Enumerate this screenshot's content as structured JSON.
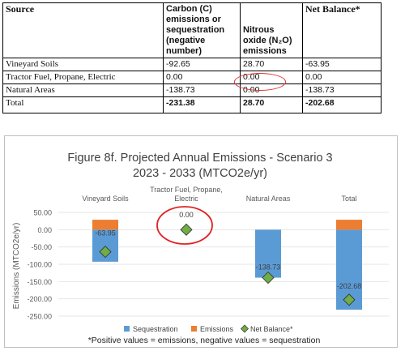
{
  "table": {
    "headers": [
      "Source",
      "Carbon (C) emissions or sequestration (negative number)",
      "Nitrous oxide (N₂O) emissions",
      "Net Balance*"
    ],
    "rows": [
      {
        "source": "Vineyard Soils",
        "carbon": "-92.65",
        "nitrous": "28.70",
        "net": "-63.95"
      },
      {
        "source": "Tractor Fuel, Propane, Electric",
        "carbon": "0.00",
        "nitrous": "0.00",
        "net": "0.00"
      },
      {
        "source": "Natural Areas",
        "carbon": "-138.73",
        "nitrous": "0.00",
        "net": "-138.73"
      },
      {
        "source": "Total",
        "carbon": "-231.38",
        "nitrous": "28.70",
        "net": "-202.68"
      }
    ]
  },
  "chart_data": {
    "type": "bar",
    "title": "Figure 8f. Projected Annual Emissions - Scenario 3",
    "subtitle": "2023 - 2033 (MTCO2e/yr)",
    "ylabel": "Emissions (MTCO2e/yr)",
    "ylim": [
      -250,
      50
    ],
    "yticks": [
      50,
      0,
      -50,
      -100,
      -150,
      -200,
      -250
    ],
    "ytick_labels": [
      "50.00",
      "0.00",
      "-50.00",
      "-100.00",
      "-150.00",
      "-200.00",
      "-250.00"
    ],
    "categories": [
      "Vineyard Soils",
      "Tractor Fuel, Propane, Electric",
      "Natural Areas",
      "Total"
    ],
    "series": [
      {
        "name": "Sequestration",
        "type": "bar",
        "color": "#5b9bd5",
        "values": [
          -92.65,
          0.0,
          -138.73,
          -231.38
        ]
      },
      {
        "name": "Emissions",
        "type": "bar",
        "color": "#ed7d31",
        "values": [
          28.7,
          0.0,
          0.0,
          28.7
        ]
      },
      {
        "name": "Net Balance*",
        "type": "marker",
        "color": "#70ad47",
        "values": [
          -63.95,
          0.0,
          -138.73,
          -202.68
        ]
      }
    ],
    "data_labels": [
      "-63.95",
      "0.00",
      "-138.73",
      "-202.68"
    ],
    "legend_position": "bottom",
    "footnote": "*Positive values = emissions, negative values = sequestration"
  }
}
